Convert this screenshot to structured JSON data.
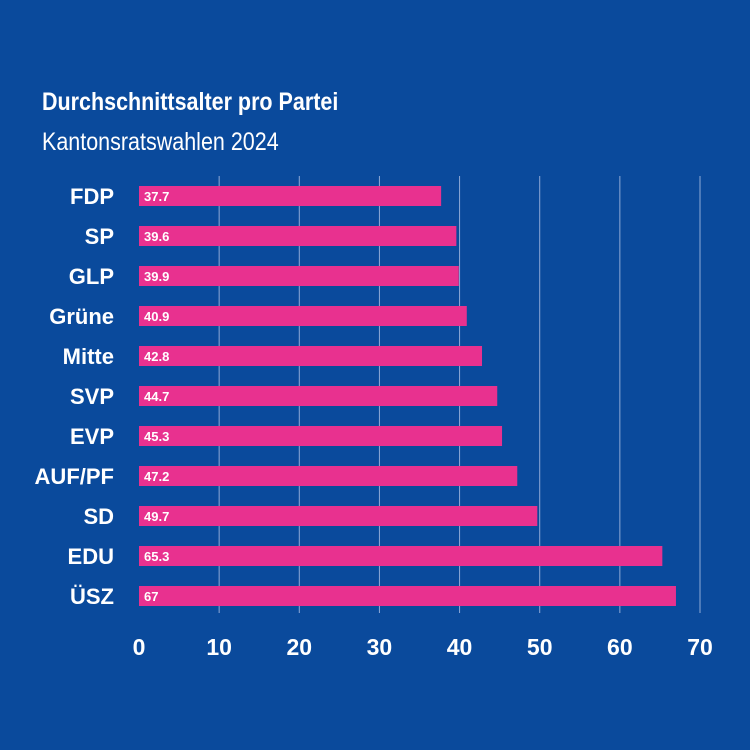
{
  "colors": {
    "background": "#0a4a9c",
    "bar": "#e8318f",
    "grid": "#8fa9d6",
    "text": "#ffffff"
  },
  "chart_data": {
    "type": "bar",
    "orientation": "horizontal",
    "title": "Durchschnittsalter pro Partei",
    "subtitle": "Kantonsratswahlen 2024",
    "categories": [
      "FDP",
      "SP",
      "GLP",
      "Grüne",
      "Mitte",
      "SVP",
      "EVP",
      "AUF/PF",
      "SD",
      "EDU",
      "ÜSZ"
    ],
    "values": [
      37.7,
      39.6,
      39.9,
      40.9,
      42.8,
      44.7,
      45.3,
      47.2,
      49.7,
      65.3,
      67
    ],
    "value_labels": [
      "37.7",
      "39.6",
      "39.9",
      "40.9",
      "42.8",
      "44.7",
      "45.3",
      "47.2",
      "49.7",
      "65.3",
      "67"
    ],
    "xlim": [
      0,
      70
    ],
    "x_ticks": [
      "0",
      "10",
      "20",
      "30",
      "40",
      "50",
      "60",
      "70"
    ],
    "grid": true,
    "xlabel": "",
    "ylabel": ""
  }
}
